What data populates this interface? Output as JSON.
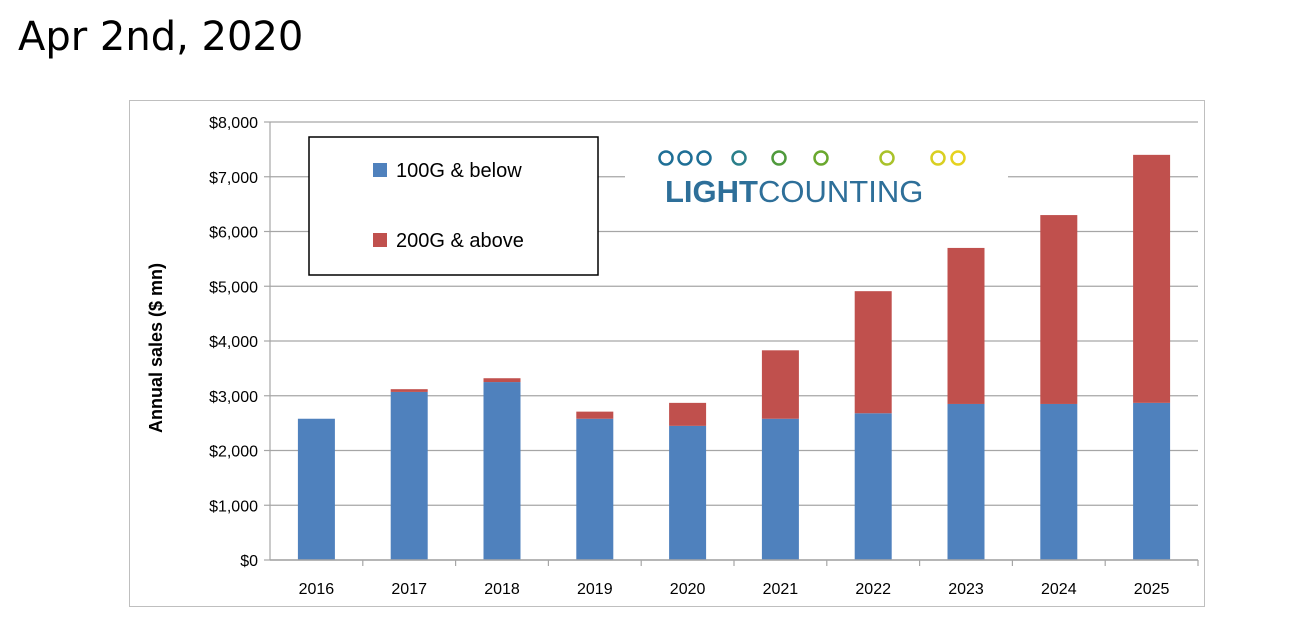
{
  "heading": "Apr 2nd, 2020",
  "logo_text": {
    "bold": "LIGHT",
    "regular": "COUNTING"
  },
  "colors": {
    "series_below": "#4f81bd",
    "series_above": "#c0504d",
    "grid": "#a6a6a6",
    "logo_text": "#2e6f99",
    "logo_dots_start": "#1f6f96",
    "logo_dots_end": "#e6d21f"
  },
  "chart_data": {
    "type": "bar",
    "stacked": true,
    "categories": [
      "2016",
      "2017",
      "2018",
      "2019",
      "2020",
      "2021",
      "2022",
      "2023",
      "2024",
      "2025"
    ],
    "series": [
      {
        "name": "100G & below",
        "color": "#4f81bd",
        "values": [
          2580,
          3070,
          3250,
          2580,
          2450,
          2580,
          2680,
          2850,
          2850,
          2870
        ]
      },
      {
        "name": "200G & above",
        "color": "#c0504d",
        "values": [
          0,
          50,
          70,
          130,
          420,
          1250,
          2230,
          2850,
          3450,
          4530
        ]
      }
    ],
    "ylabel": "Annual sales ($ mn)",
    "ylim": [
      0,
      8000
    ],
    "yticks": [
      "$0",
      "$1,000",
      "$2,000",
      "$3,000",
      "$4,000",
      "$5,000",
      "$6,000",
      "$7,000",
      "$8,000"
    ],
    "grid": true,
    "legend": "top-left"
  }
}
